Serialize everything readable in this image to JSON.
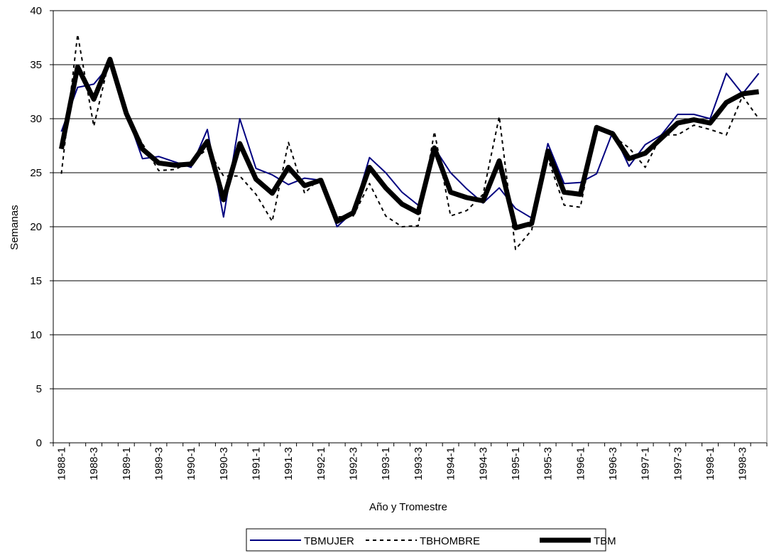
{
  "chart_data": {
    "type": "line",
    "x_label": "Año y Tromestre",
    "y_label": "Semanas",
    "categories": [
      "1988-1",
      null,
      "1988-3",
      null,
      "1989-1",
      null,
      "1989-3",
      null,
      "1990-1",
      null,
      "1990-3",
      null,
      "1991-1",
      null,
      "1991-3",
      null,
      "1992-1",
      null,
      "1992-3",
      null,
      "1993-1",
      null,
      "1993-3",
      null,
      "1994-1",
      null,
      "1994-3",
      null,
      "1995-1",
      null,
      "1995-3",
      null,
      "1996-1",
      null,
      "1996-3",
      null,
      "1997-1",
      null,
      "1997-3",
      null,
      "1998-1",
      null,
      "1998-3",
      null
    ],
    "series": [
      {
        "name": "TBMUJER",
        "color": "#000080",
        "values": [
          28.8,
          32.9,
          33.2,
          35.0,
          30.6,
          26.3,
          26.5,
          26.0,
          25.5,
          29.0,
          20.9,
          30.0,
          25.4,
          24.8,
          23.9,
          24.5,
          24.3,
          20.0,
          21.4,
          26.4,
          25.0,
          23.2,
          22.0,
          27.3,
          25.0,
          23.5,
          22.2,
          23.6,
          21.7,
          20.8,
          27.7,
          24.0,
          24.1,
          24.9,
          28.8,
          25.6,
          27.6,
          28.5,
          30.4,
          30.4,
          30.0,
          34.2,
          32.3,
          34.2
        ]
      },
      {
        "name": "TBHOMBRE",
        "color": "#000000",
        "values": [
          24.9,
          37.8,
          29.3,
          35.7,
          30.4,
          27.7,
          25.2,
          25.3,
          26.0,
          27.2,
          24.7,
          24.7,
          23.0,
          20.5,
          27.8,
          23.1,
          24.6,
          20.9,
          21.0,
          24.0,
          21.0,
          20.0,
          20.1,
          28.8,
          21.0,
          21.5,
          23.0,
          30.2,
          17.9,
          19.7,
          26.3,
          22.0,
          21.8,
          29.3,
          28.4,
          27.3,
          25.5,
          28.5,
          28.5,
          29.4,
          29.0,
          28.5,
          32.1,
          30.0
        ]
      },
      {
        "name": "TBM",
        "color": "#000000",
        "values": [
          27.2,
          34.8,
          31.8,
          35.5,
          30.5,
          27.2,
          25.9,
          25.7,
          25.8,
          27.9,
          22.5,
          27.7,
          24.4,
          23.1,
          25.5,
          23.8,
          24.3,
          20.5,
          21.3,
          25.5,
          23.6,
          22.1,
          21.3,
          27.3,
          23.2,
          22.7,
          22.4,
          26.1,
          19.9,
          20.3,
          27.0,
          23.2,
          23.0,
          29.2,
          28.6,
          26.3,
          26.8,
          28.2,
          29.6,
          29.9,
          29.6,
          31.5,
          32.3,
          32.5
        ]
      }
    ],
    "ylim": [
      0,
      40
    ],
    "yticks": [
      0,
      5,
      10,
      15,
      20,
      25,
      30,
      35,
      40
    ],
    "grid": true
  }
}
